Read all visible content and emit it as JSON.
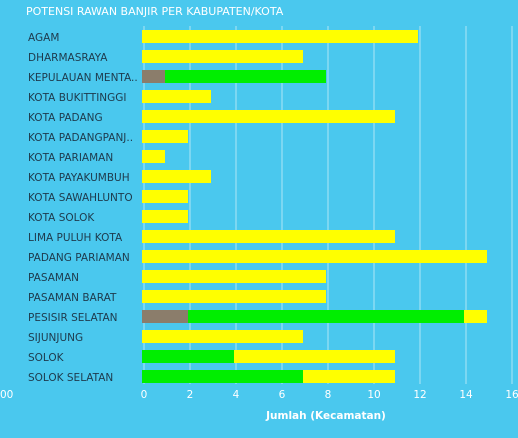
{
  "chart_data": {
    "type": "bar",
    "orientation": "horizontal",
    "stacked": true,
    "title": "POTENSI RAWAN BANJIR PER KABUPATEN/KOTA",
    "xlabel": "Jumlah (Kecamatan)",
    "ylabel": "",
    "xlim": [
      0,
      16
    ],
    "x_ticks": [
      "0",
      "2",
      "4",
      "6",
      "8",
      "10",
      "12",
      "14",
      "16"
    ],
    "left_edge_tick_label": "00",
    "grid": true,
    "legend": "none",
    "categories": [
      "AGAM",
      "DHARMASRAYA",
      "KEPULAUAN MENTA..",
      "KOTA BUKITTINGGI",
      "KOTA PADANG",
      "KOTA PADANGPANJ..",
      "KOTA PARIAMAN",
      "KOTA PAYAKUMBUH",
      "KOTA SAWAHLUNTO",
      "KOTA SOLOK",
      "LIMA PULUH KOTA",
      "PADANG PARIAMAN",
      "PASAMAN",
      "PASAMAN BARAT",
      "PESISIR SELATAN",
      "SIJUNJUNG",
      "SOLOK",
      "SOLOK SELATAN"
    ],
    "series": [
      {
        "color": "#8b7d6b",
        "values": [
          0,
          0,
          1,
          0,
          0,
          0,
          0,
          0,
          0,
          0,
          0,
          0,
          0,
          0,
          2,
          0,
          0,
          0
        ]
      },
      {
        "color": "#00ee00",
        "values": [
          0,
          0,
          7,
          0,
          0,
          0,
          0,
          0,
          0,
          0,
          0,
          0,
          0,
          0,
          12,
          0,
          4,
          7
        ]
      },
      {
        "color": "#ffff00",
        "values": [
          12,
          7,
          0,
          3,
          11,
          2,
          1,
          3,
          2,
          2,
          11,
          15,
          8,
          8,
          1,
          7,
          7,
          4
        ]
      }
    ]
  }
}
